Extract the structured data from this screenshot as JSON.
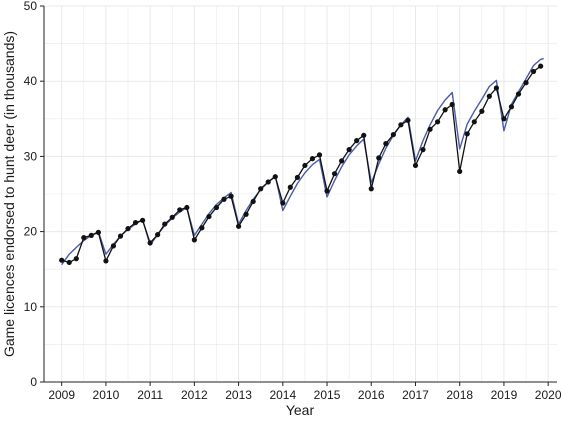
{
  "chart_data": {
    "type": "line",
    "xlabel": "Year",
    "ylabel": "Game licences endorsed to hunt deer (in thousands)",
    "xlim": [
      2008.6,
      2020.2
    ],
    "ylim": [
      0,
      50
    ],
    "xticks": [
      2009,
      2010,
      2011,
      2012,
      2013,
      2014,
      2015,
      2016,
      2017,
      2018,
      2019,
      2020
    ],
    "yticks": [
      0,
      10,
      20,
      30,
      40,
      50
    ],
    "grid": true,
    "colors": {
      "observed": "#111111",
      "fitted": "#4b5ba8",
      "grid": "#e9e9e9"
    },
    "series": [
      {
        "role": "observed",
        "x": [
          2009.0,
          2009.17,
          2009.33,
          2009.5,
          2009.67,
          2009.83,
          2010.0,
          2010.17,
          2010.33,
          2010.5,
          2010.67,
          2010.83,
          2011.0,
          2011.17,
          2011.33,
          2011.5,
          2011.67,
          2011.83,
          2012.0,
          2012.17,
          2012.33,
          2012.5,
          2012.67,
          2012.83,
          2013.0,
          2013.17,
          2013.33,
          2013.5,
          2013.67,
          2013.83,
          2014.0,
          2014.17,
          2014.33,
          2014.5,
          2014.67,
          2014.83,
          2015.0,
          2015.17,
          2015.33,
          2015.5,
          2015.67,
          2015.83,
          2016.0,
          2016.17,
          2016.33,
          2016.5,
          2016.67,
          2016.83,
          2017.0,
          2017.17,
          2017.33,
          2017.5,
          2017.67,
          2017.83,
          2018.0,
          2018.17,
          2018.33,
          2018.5,
          2018.67,
          2018.83,
          2019.0,
          2019.17,
          2019.33,
          2019.5,
          2019.67,
          2019.83
        ],
        "values": [
          16.2,
          15.9,
          16.4,
          19.2,
          19.5,
          19.9,
          16.1,
          18.1,
          19.4,
          20.4,
          21.2,
          21.5,
          18.5,
          19.6,
          21.0,
          21.9,
          22.9,
          23.2,
          18.9,
          20.5,
          22.0,
          23.2,
          24.3,
          24.7,
          20.7,
          22.3,
          24.0,
          25.7,
          26.6,
          27.3,
          23.8,
          25.9,
          27.2,
          28.8,
          29.7,
          30.2,
          25.4,
          27.7,
          29.4,
          30.9,
          32.1,
          32.8,
          25.7,
          29.8,
          31.7,
          32.9,
          34.2,
          34.8,
          28.8,
          30.9,
          33.6,
          34.6,
          36.2,
          36.9,
          28.0,
          33.0,
          34.6,
          36.0,
          38.0,
          39.1,
          35.0,
          36.6,
          38.3,
          39.8,
          41.3,
          42.0
        ]
      },
      {
        "role": "fitted",
        "x": [
          2009.0,
          2009.17,
          2009.33,
          2009.5,
          2009.67,
          2009.83,
          2010.0,
          2010.17,
          2010.33,
          2010.5,
          2010.67,
          2010.83,
          2011.0,
          2011.17,
          2011.33,
          2011.5,
          2011.67,
          2011.83,
          2012.0,
          2012.17,
          2012.33,
          2012.5,
          2012.67,
          2012.83,
          2013.0,
          2013.17,
          2013.33,
          2013.5,
          2013.67,
          2013.83,
          2014.0,
          2014.17,
          2014.33,
          2014.5,
          2014.67,
          2014.83,
          2015.0,
          2015.17,
          2015.33,
          2015.5,
          2015.67,
          2015.83,
          2016.0,
          2016.17,
          2016.33,
          2016.5,
          2016.67,
          2016.83,
          2017.0,
          2017.17,
          2017.33,
          2017.5,
          2017.67,
          2017.83,
          2018.0,
          2018.17,
          2018.33,
          2018.5,
          2018.67,
          2018.83,
          2019.0,
          2019.17,
          2019.33,
          2019.5,
          2019.67,
          2019.83,
          2019.9
        ],
        "values": [
          15.6,
          17.0,
          17.9,
          18.8,
          19.5,
          20.0,
          17.0,
          18.3,
          19.4,
          20.3,
          21.0,
          21.6,
          18.2,
          19.6,
          20.8,
          21.8,
          22.6,
          23.2,
          19.5,
          21.0,
          22.4,
          23.6,
          24.5,
          25.2,
          21.0,
          22.8,
          24.3,
          25.6,
          26.6,
          27.4,
          22.8,
          24.7,
          26.4,
          27.8,
          28.9,
          29.6,
          24.6,
          26.8,
          28.6,
          30.2,
          31.4,
          32.3,
          26.5,
          29.0,
          31.1,
          32.8,
          34.2,
          35.2,
          29.4,
          32.1,
          34.2,
          36.1,
          37.5,
          38.5,
          31.0,
          34.3,
          36.0,
          37.6,
          39.3,
          40.1,
          33.4,
          36.9,
          38.6,
          40.3,
          42.1,
          42.9,
          43.0
        ]
      }
    ]
  }
}
